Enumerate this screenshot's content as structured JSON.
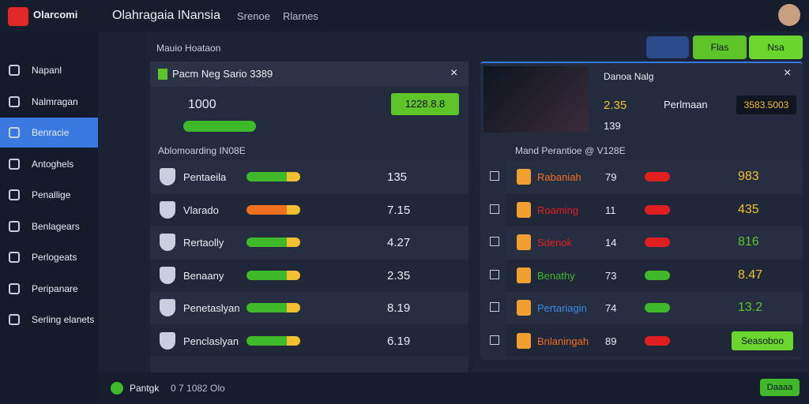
{
  "header": {
    "logo": "Olarcomi",
    "title": "Olahragaia INansia",
    "nav": [
      "Srenoe",
      "Rlarnes"
    ]
  },
  "sidebar": {
    "items": [
      "Napanl",
      "Nalmragan",
      "Benracie",
      "Antoghels",
      "Penallige",
      "Benlagears",
      "Perlogeats",
      "Peripanare",
      "Serling elanets"
    ],
    "active": 2
  },
  "main": {
    "heading": "Mauio Hoataon",
    "buttons": [
      "Flas",
      "Nsa"
    ]
  },
  "left_panel": {
    "title": "Pacm Neg Sario 3389",
    "stat": "1000",
    "action": "1228.8.8",
    "section": "Ablomoarding IN08E",
    "rows": [
      {
        "name": "Pentaeila",
        "value": "135"
      },
      {
        "name": "Vlarado",
        "value": "7.15"
      },
      {
        "name": "Rertaolly",
        "value": "4.27"
      },
      {
        "name": "Benaany",
        "value": "2.35"
      },
      {
        "name": "Penetaslyan",
        "value": "8.19"
      },
      {
        "name": "Penclaslyan",
        "value": "6.19"
      }
    ]
  },
  "right_panel": {
    "title": "Danoa Nalg",
    "stat1": "2.35",
    "label": "Perlmaan",
    "box": "3583.5003",
    "stat2": "139",
    "section": "Mand Perantioe @ V128E",
    "rows": [
      {
        "name": "Rabaniah",
        "count": "79",
        "value": "983"
      },
      {
        "name": "Roaming",
        "count": "11",
        "value": "435"
      },
      {
        "name": "Sdenok",
        "count": "14",
        "value": "816"
      },
      {
        "name": "Benathy",
        "count": "73",
        "value": "8.47"
      },
      {
        "name": "Pertariagin",
        "count": "74",
        "value": "13.2"
      },
      {
        "name": "Bnlaningah",
        "count": "89",
        "value": "Seasoboo"
      }
    ]
  },
  "footer": {
    "label": "Pantgk",
    "info": "0 7 1082 Olo",
    "button": "Daaaa"
  }
}
